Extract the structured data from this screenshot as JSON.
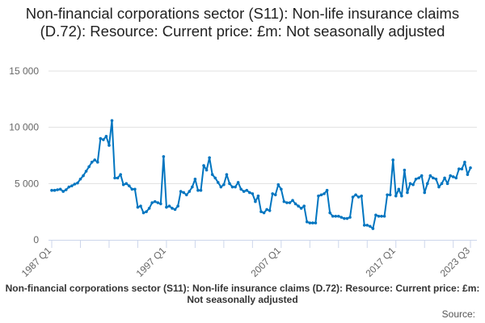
{
  "chart_data": {
    "type": "line",
    "title": "Non-financial corporations sector (S11): Non-life insurance claims (D.72): Resource: Current price: £m: Not seasonally adjusted",
    "xlabel": "",
    "ylabel": "",
    "ylim": [
      0,
      15000
    ],
    "yticks": [
      "0",
      "5 000",
      "10 000",
      "15 000"
    ],
    "ytick_values": [
      0,
      5000,
      10000,
      15000
    ],
    "xtick_labels": [
      "1987 Q1",
      "1997 Q1",
      "2007 Q1",
      "2017 Q1",
      "2023 Q3"
    ],
    "xtick_indices": [
      0,
      40,
      80,
      120,
      146
    ],
    "start": "1987 Q1",
    "end": "2023 Q3",
    "frequency": "quarterly",
    "grid": true,
    "color": "#0075c0",
    "series": [
      {
        "name": "Non-life insurance claims (D.72)",
        "values": [
          4400,
          4400,
          4450,
          4500,
          4300,
          4450,
          4700,
          4800,
          4950,
          5050,
          5400,
          5700,
          6100,
          6500,
          6900,
          7100,
          6900,
          9000,
          8900,
          9200,
          8400,
          10600,
          5500,
          5500,
          5800,
          4900,
          5000,
          4800,
          4500,
          4500,
          2900,
          3000,
          2400,
          2500,
          2800,
          3300,
          3400,
          3300,
          3200,
          7400,
          2900,
          3000,
          2800,
          2700,
          3000,
          4300,
          4200,
          4000,
          4300,
          4700,
          5400,
          4400,
          4400,
          6600,
          6200,
          7300,
          5800,
          5500,
          5100,
          4700,
          4900,
          5800,
          5000,
          4700,
          4700,
          5100,
          4500,
          4300,
          4400,
          4200,
          4100,
          3400,
          3900,
          2500,
          2400,
          2700,
          2600,
          4100,
          4000,
          4900,
          4500,
          3400,
          3300,
          3300,
          3500,
          3200,
          3000,
          2800,
          3000,
          1600,
          1500,
          1500,
          1500,
          3900,
          4000,
          4100,
          4400,
          2400,
          2100,
          2100,
          2100,
          2000,
          1900,
          1900,
          2000,
          3800,
          4000,
          3800,
          3900,
          1300,
          1300,
          1200,
          1000,
          2200,
          2100,
          2100,
          2100,
          4000,
          4000,
          7100,
          3900,
          4500,
          3900,
          6200,
          4200,
          5000,
          4900,
          5400,
          5500,
          5700,
          4200,
          5000,
          5700,
          5500,
          5400,
          4700,
          5000,
          5500,
          5000,
          5700,
          5600,
          5500,
          6300,
          6300,
          6900,
          5800,
          6400
        ]
      }
    ]
  },
  "footer": {
    "text": "Non-financial corporations sector (S11): Non-life insurance claims (D.72): Resource: Current price: £m: Not seasonally adjusted",
    "source": "Source:"
  }
}
